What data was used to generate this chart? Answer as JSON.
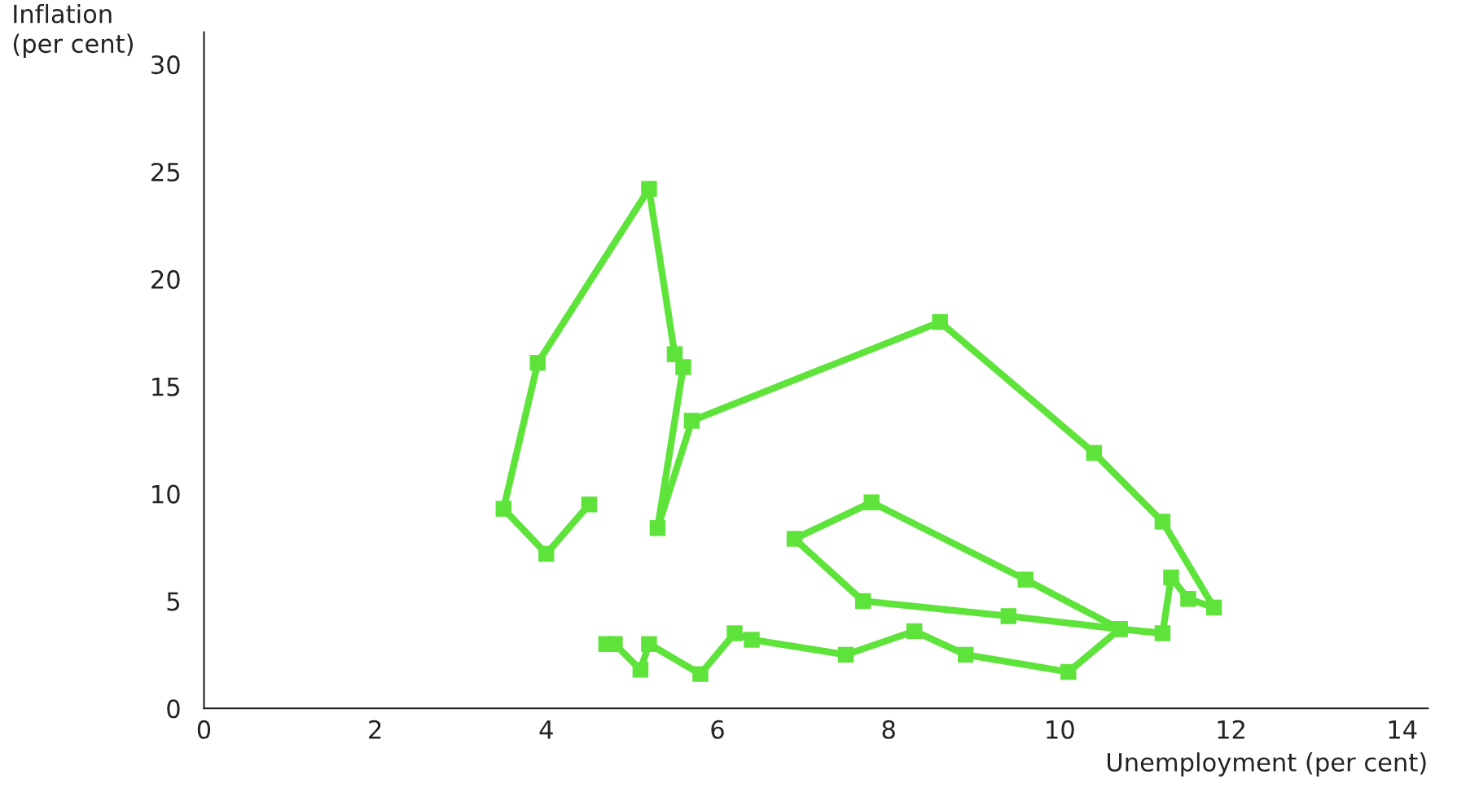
{
  "chart_data": {
    "type": "line",
    "xlabel": "Unemployment (per cent)",
    "ylabel": "Inflation\n(per cent)",
    "xlim": [
      0,
      14.3
    ],
    "ylim": [
      0,
      31.5
    ],
    "xticks": [
      0,
      2,
      4,
      6,
      8,
      10,
      12,
      14
    ],
    "yticks": [
      0,
      5,
      10,
      15,
      20,
      25,
      30
    ],
    "marker": "square",
    "line_style": "solid",
    "grid": false,
    "legend": false,
    "series": [
      {
        "color": "#5ee33a",
        "x": [
          4.5,
          4.0,
          3.5,
          3.9,
          5.2,
          5.5,
          5.6,
          5.3,
          5.7,
          8.6,
          10.4,
          11.2,
          11.8,
          11.5,
          11.3,
          11.2,
          10.7,
          9.6,
          7.8,
          6.9,
          7.7,
          9.4,
          10.7,
          10.1,
          8.9,
          8.3,
          7.5,
          6.4,
          6.2,
          5.8,
          5.2,
          5.1,
          4.8,
          4.7
        ],
        "values": [
          9.5,
          7.2,
          9.3,
          16.1,
          24.2,
          16.5,
          15.9,
          8.4,
          13.4,
          18.0,
          11.9,
          8.7,
          4.7,
          5.1,
          6.1,
          3.5,
          3.7,
          6.0,
          9.6,
          7.9,
          5.0,
          4.3,
          3.7,
          1.7,
          2.5,
          3.6,
          2.5,
          3.2,
          3.5,
          1.6,
          3.0,
          1.8,
          3.0,
          3.0
        ]
      }
    ]
  }
}
